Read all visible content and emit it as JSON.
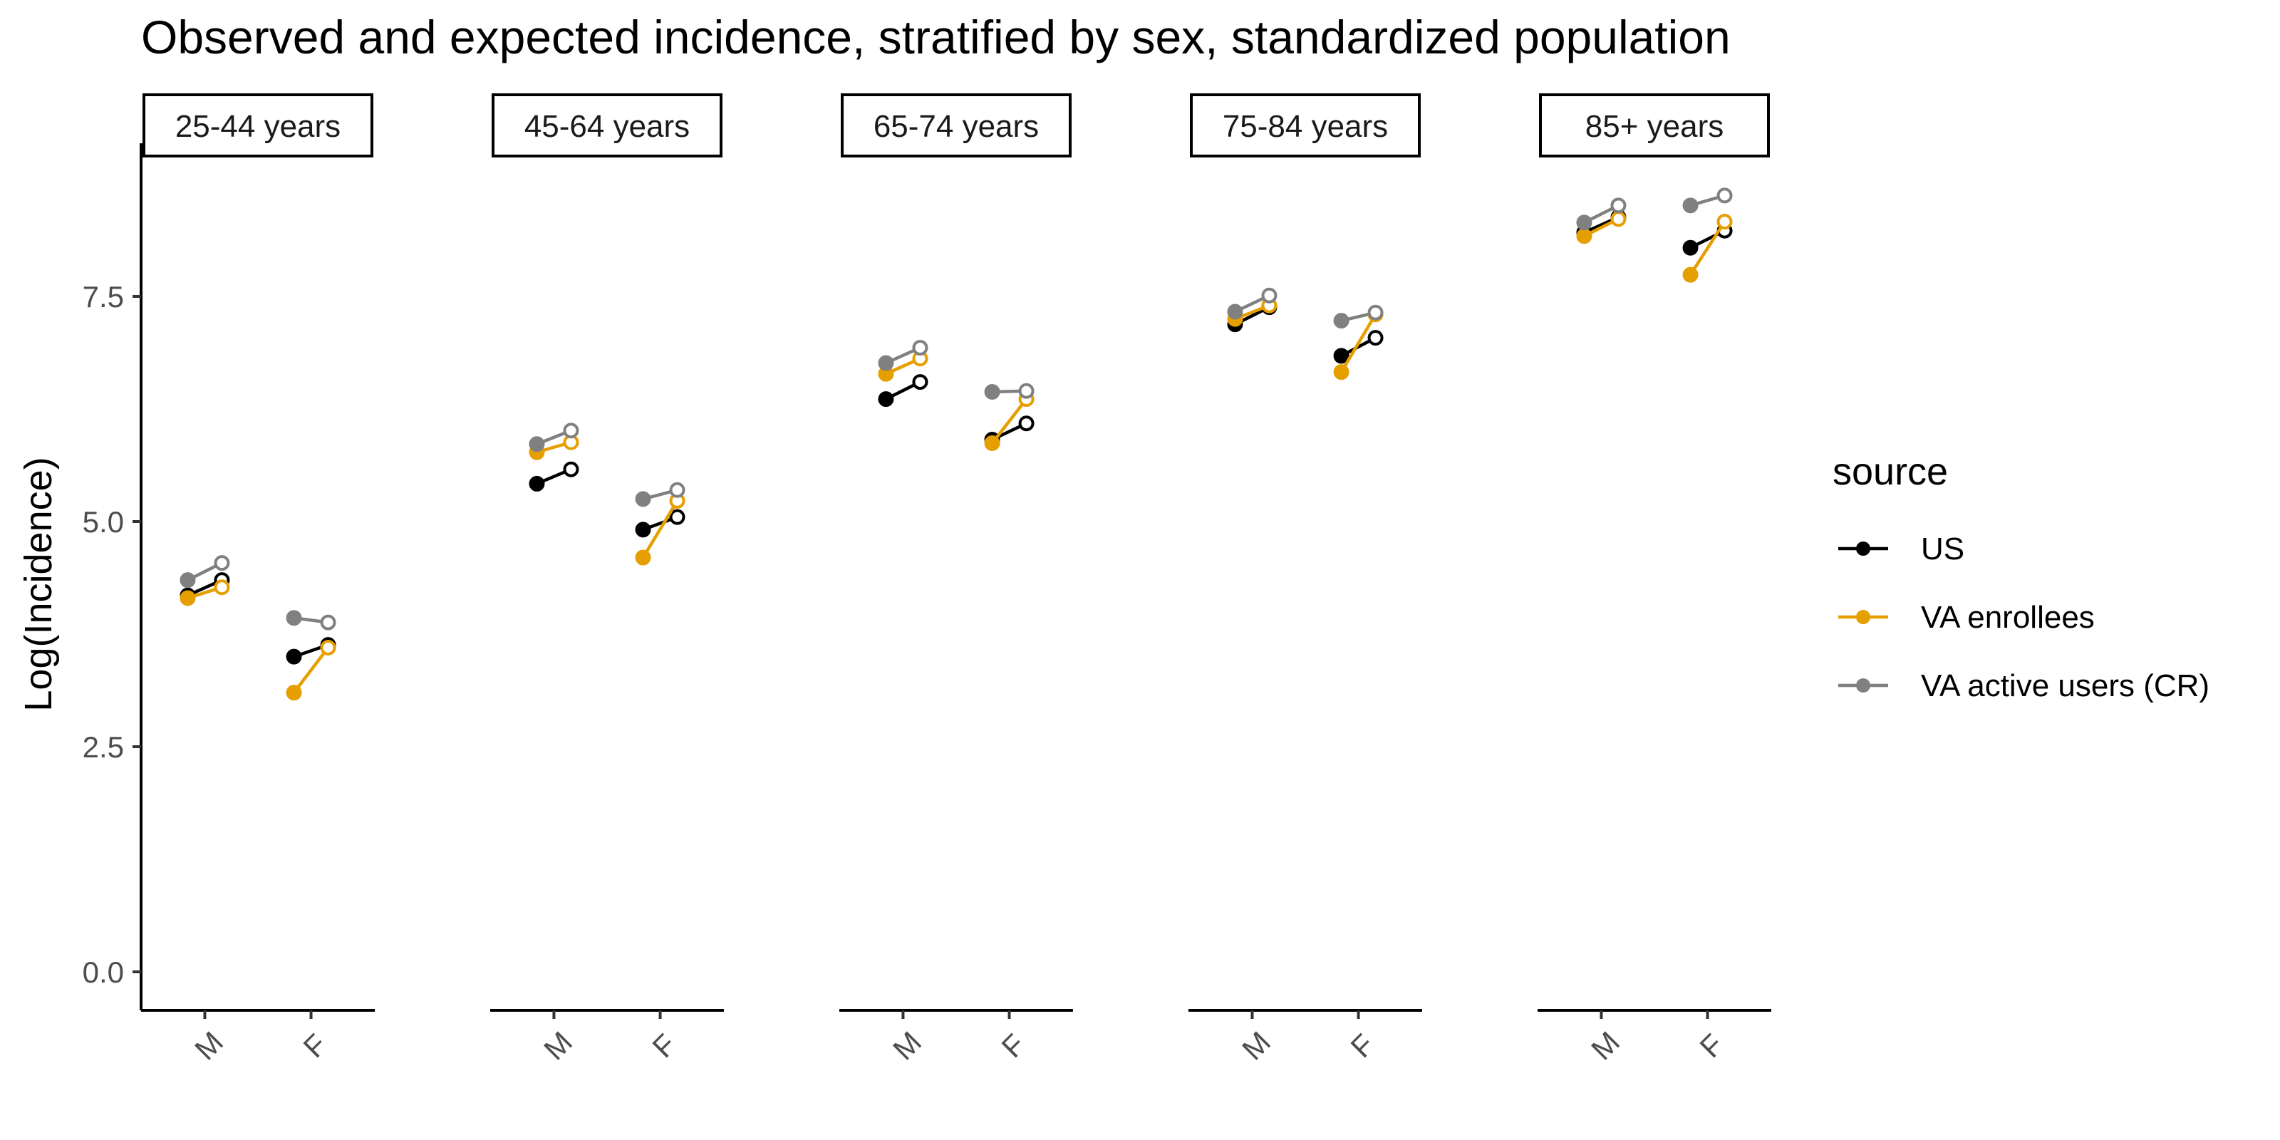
{
  "chart_data": {
    "type": "line",
    "title": "Observed and expected incidence, stratified by sex, standardized population",
    "xlabel": "",
    "ylabel": "Log(Incidence)",
    "ylim": [
      -0.5,
      9.2
    ],
    "yticks": [
      0.0,
      2.5,
      5.0,
      7.5
    ],
    "ytick_labels": [
      "0.0",
      "2.5",
      "5.0",
      "7.5"
    ],
    "grid": false,
    "legend": {
      "title": "source",
      "placement": "right"
    },
    "facets": [
      "25-44 years",
      "45-64 years",
      "65-74 years",
      "75-84 years",
      "85+ years"
    ],
    "categories": [
      "M",
      "F"
    ],
    "point_styles": {
      "observed": "filled",
      "expected": "open"
    },
    "series": [
      {
        "name": "US",
        "color": "#000000",
        "values": {
          "25-44 years": {
            "M": [
              4.18,
              4.35
            ],
            "F": [
              3.5,
              3.63
            ]
          },
          "45-64 years": {
            "M": [
              5.42,
              5.58
            ],
            "F": [
              4.91,
              5.05
            ]
          },
          "65-74 years": {
            "M": [
              6.36,
              6.55
            ],
            "F": [
              5.91,
              6.09
            ]
          },
          "75-84 years": {
            "M": [
              7.19,
              7.38
            ],
            "F": [
              6.84,
              7.04
            ]
          },
          "85+ years": {
            "M": [
              8.21,
              8.38
            ],
            "F": [
              8.04,
              8.23
            ]
          }
        }
      },
      {
        "name": "VA enrollees",
        "color": "#E69F00",
        "values": {
          "25-44 years": {
            "M": [
              4.15,
              4.27
            ],
            "F": [
              3.1,
              3.6
            ]
          },
          "45-64 years": {
            "M": [
              5.77,
              5.88
            ],
            "F": [
              4.6,
              5.23
            ]
          },
          "65-74 years": {
            "M": [
              6.64,
              6.81
            ],
            "F": [
              5.87,
              6.36
            ]
          },
          "75-84 years": {
            "M": [
              7.25,
              7.4
            ],
            "F": [
              6.66,
              7.3
            ]
          },
          "85+ years": {
            "M": [
              8.17,
              8.36
            ],
            "F": [
              7.74,
              8.33
            ]
          }
        }
      },
      {
        "name": "VA active users (CR)",
        "color": "#808080",
        "values": {
          "25-44 years": {
            "M": [
              4.35,
              4.54
            ],
            "F": [
              3.93,
              3.88
            ]
          },
          "45-64 years": {
            "M": [
              5.86,
              6.01
            ],
            "F": [
              5.25,
              5.35
            ]
          },
          "65-74 years": {
            "M": [
              6.76,
              6.93
            ],
            "F": [
              6.44,
              6.45
            ]
          },
          "75-84 years": {
            "M": [
              7.33,
              7.51
            ],
            "F": [
              7.23,
              7.32
            ]
          },
          "85+ years": {
            "M": [
              8.32,
              8.51
            ],
            "F": [
              8.51,
              8.62
            ]
          }
        }
      }
    ]
  }
}
